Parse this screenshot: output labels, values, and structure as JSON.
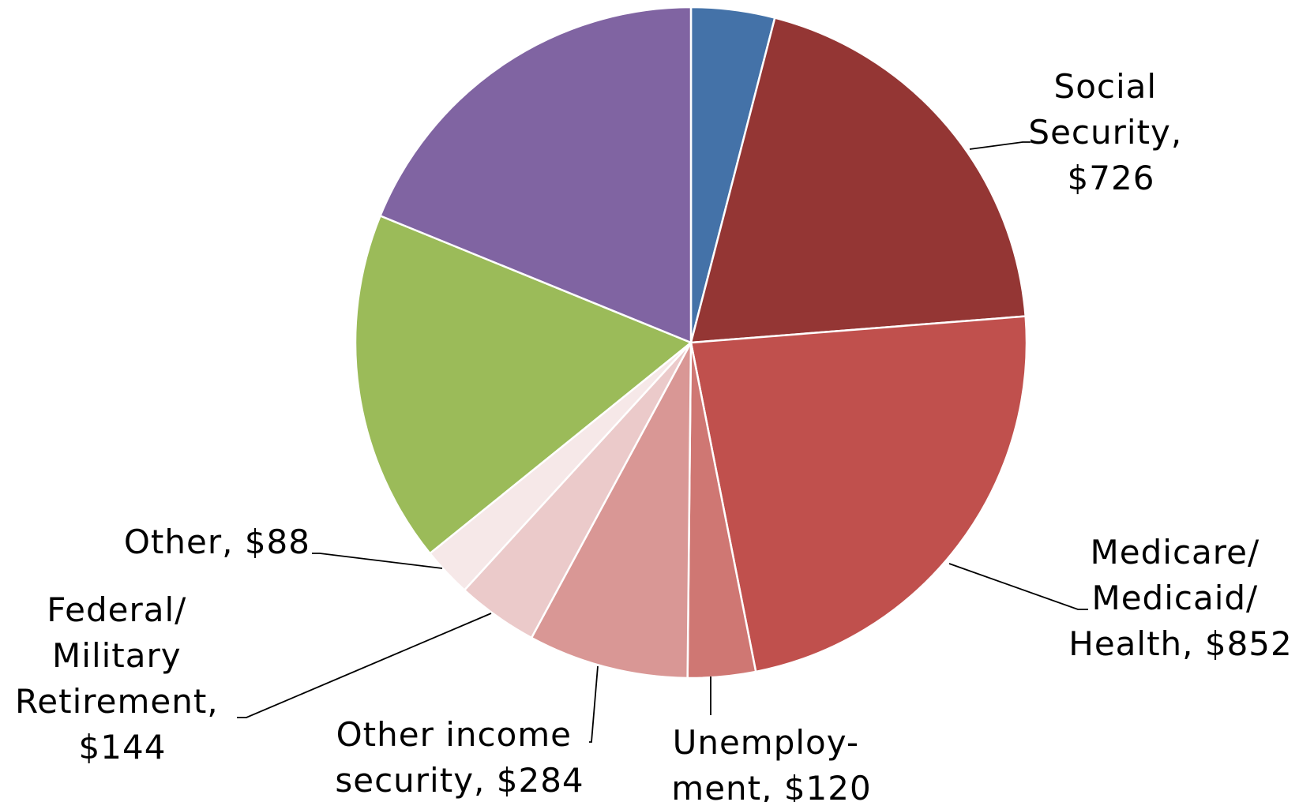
{
  "chart_data": {
    "type": "pie",
    "slices": [
      {
        "label": "",
        "value": 148,
        "color": "#4472A8"
      },
      {
        "label": "Social Security, $726",
        "value": 726,
        "color": "#943634"
      },
      {
        "label": "Medicare/ Medicaid/ Health, $852",
        "value": 852,
        "color": "#C0504D"
      },
      {
        "label": "Unemploy- ment, $120",
        "value": 120,
        "color": "#CF7773"
      },
      {
        "label": "Other income security, $284",
        "value": 284,
        "color": "#D99795"
      },
      {
        "label": "Federal/ Military Retirement, $144",
        "value": 144,
        "color": "#EBCACA"
      },
      {
        "label": "Other, $88",
        "value": 88,
        "color": "#F6E8E8"
      },
      {
        "label": "",
        "value": 625,
        "color": "#9BBB59"
      },
      {
        "label": "",
        "value": 693,
        "color": "#8064A2"
      }
    ],
    "labels": {
      "social_security": [
        "Social",
        "Security,",
        "$726"
      ],
      "medicare": [
        "Medicare/",
        "Medicaid/",
        "Health, $852"
      ],
      "unemployment": [
        "Unemploy-",
        "ment, $120"
      ],
      "other_income": [
        "Other income",
        "security, $284"
      ],
      "federal_military": [
        "Federal/",
        "Military",
        "Retirement,",
        "$144"
      ],
      "other": [
        "Other, $88"
      ]
    }
  }
}
